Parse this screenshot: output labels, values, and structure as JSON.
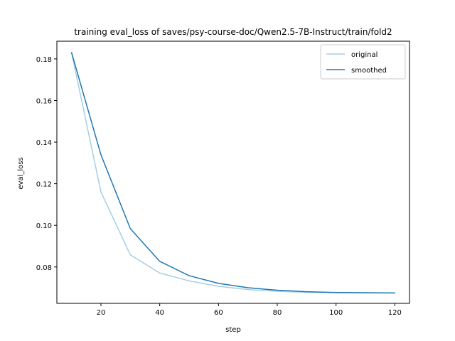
{
  "chart_data": {
    "type": "line",
    "title": "training eval_loss of saves/psy-course-doc/Qwen2.5-7B-Instruct/train/fold2",
    "xlabel": "step",
    "ylabel": "eval_loss",
    "xlim": [
      5,
      125
    ],
    "ylim": [
      0.0625,
      0.1885
    ],
    "xticks": [
      20,
      40,
      60,
      80,
      100,
      120
    ],
    "yticks": [
      0.08,
      0.1,
      0.12,
      0.14,
      0.16,
      0.18
    ],
    "ytick_labels": [
      "0.08",
      "0.10",
      "0.12",
      "0.14",
      "0.16",
      "0.18"
    ],
    "grid": false,
    "legend_position": "top-right",
    "x": [
      10,
      20,
      30,
      40,
      50,
      60,
      70,
      80,
      90,
      100,
      110,
      120
    ],
    "series": [
      {
        "name": "original",
        "color": "#a6cee3",
        "values": [
          0.183,
          0.116,
          0.0858,
          0.0771,
          0.0733,
          0.0707,
          0.0691,
          0.0683,
          0.0678,
          0.0676,
          0.0675,
          0.0675
        ]
      },
      {
        "name": "smoothed",
        "color": "#1f78b4",
        "values": [
          0.183,
          0.1339,
          0.0984,
          0.0827,
          0.0758,
          0.0721,
          0.07,
          0.0688,
          0.0681,
          0.0677,
          0.0676,
          0.0675
        ]
      }
    ]
  }
}
